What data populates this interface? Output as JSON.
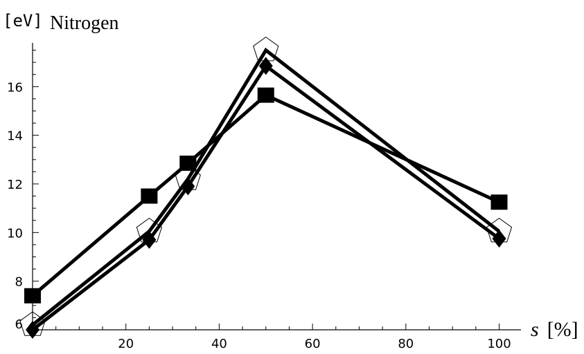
{
  "chart_data": {
    "type": "line",
    "ylabel_unit": "[eV]",
    "title": "Nitrogen",
    "xlabel_var": "s",
    "xlabel_unit": "[%]",
    "xlim": [
      0,
      102
    ],
    "ylim": [
      6,
      17.8
    ],
    "x_ticks": [
      20,
      40,
      60,
      80,
      100
    ],
    "y_ticks": [
      8,
      10,
      12,
      14,
      16
    ],
    "y_tick_extra": "6",
    "series": [
      {
        "marker": "square",
        "x": [
          0,
          25,
          33.3,
          50,
          100
        ],
        "y": [
          7.4,
          11.5,
          12.85,
          15.65,
          11.25
        ]
      },
      {
        "marker": "pentagon-open",
        "x": [
          0,
          25,
          33.3,
          50,
          100
        ],
        "y": [
          6.2,
          10.05,
          12.2,
          17.5,
          10.05
        ]
      },
      {
        "marker": "diamond",
        "x": [
          0,
          25,
          33.3,
          50,
          100
        ],
        "y": [
          6.0,
          9.7,
          11.9,
          16.85,
          9.75
        ]
      }
    ]
  }
}
